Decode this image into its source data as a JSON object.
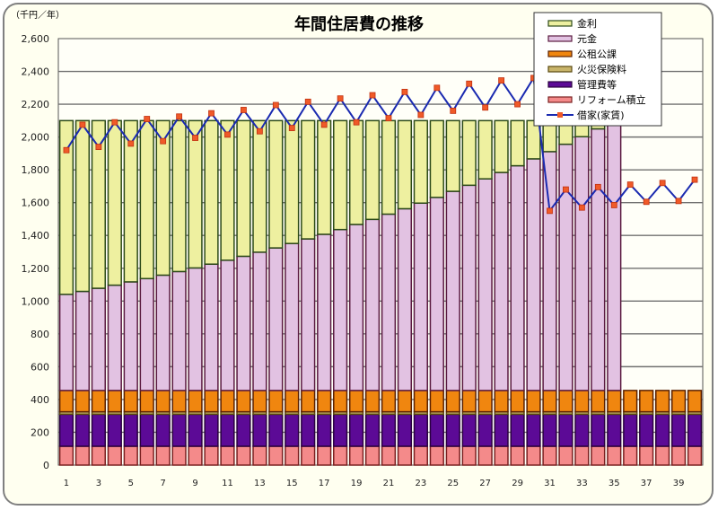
{
  "chart_data": {
    "type": "bar",
    "stacked": true,
    "title": "年間住居費の推移",
    "ylabel": "（千円／年）",
    "xlabel": "",
    "ylim": [
      0,
      2600
    ],
    "ytick_step": 200,
    "grid": true,
    "legend_position": "top-right",
    "categories": [
      1,
      2,
      3,
      4,
      5,
      6,
      7,
      8,
      9,
      10,
      11,
      12,
      13,
      14,
      15,
      16,
      17,
      18,
      19,
      20,
      21,
      22,
      23,
      24,
      25,
      26,
      27,
      28,
      29,
      30,
      31,
      32,
      33,
      34,
      35,
      36,
      37,
      38,
      39,
      40
    ],
    "series": [
      {
        "name": "リフォーム積立",
        "color": "#f48a8a",
        "border": "#7a2020",
        "values": [
          115,
          115,
          115,
          115,
          115,
          115,
          115,
          115,
          115,
          115,
          115,
          115,
          115,
          115,
          115,
          115,
          115,
          115,
          115,
          115,
          115,
          115,
          115,
          115,
          115,
          115,
          115,
          115,
          115,
          115,
          115,
          115,
          115,
          115,
          115,
          115,
          115,
          115,
          115,
          115
        ]
      },
      {
        "name": "管理費等",
        "color": "#5c0a96",
        "border": "#2a0040",
        "values": [
          195,
          195,
          195,
          195,
          195,
          195,
          195,
          195,
          195,
          195,
          195,
          195,
          195,
          195,
          195,
          195,
          195,
          195,
          195,
          195,
          195,
          195,
          195,
          195,
          195,
          195,
          195,
          195,
          195,
          195,
          195,
          195,
          195,
          195,
          195,
          195,
          195,
          195,
          195,
          195
        ]
      },
      {
        "name": "火災保険料",
        "color": "#c8b46a",
        "border": "#5a4a10",
        "values": [
          15,
          15,
          15,
          15,
          15,
          15,
          15,
          15,
          15,
          15,
          15,
          15,
          15,
          15,
          15,
          15,
          15,
          15,
          15,
          15,
          15,
          15,
          15,
          15,
          15,
          15,
          15,
          15,
          15,
          15,
          15,
          15,
          15,
          15,
          15,
          15,
          15,
          15,
          15,
          15
        ]
      },
      {
        "name": "公租公課",
        "color": "#f0860f",
        "border": "#5a2000",
        "values": [
          130,
          130,
          130,
          130,
          130,
          130,
          130,
          130,
          130,
          130,
          130,
          130,
          130,
          130,
          130,
          130,
          130,
          130,
          130,
          130,
          130,
          130,
          130,
          130,
          130,
          130,
          130,
          130,
          130,
          130,
          130,
          130,
          130,
          130,
          130,
          130,
          130,
          130,
          130,
          130
        ]
      },
      {
        "name": "元金",
        "color": "#e2c2e2",
        "border": "#5a1a40",
        "values": [
          586,
          604,
          623,
          642,
          662,
          682,
          703,
          725,
          747,
          770,
          794,
          818,
          843,
          869,
          896,
          924,
          952,
          981,
          1012,
          1043,
          1075,
          1108,
          1142,
          1177,
          1214,
          1251,
          1290,
          1329,
          1370,
          1412,
          1456,
          1501,
          1547,
          1595,
          1644,
          0,
          0,
          0,
          0,
          0
        ]
      },
      {
        "name": "金利",
        "color": "#eef0a0",
        "border": "#2c4a18",
        "values": [
          1059,
          1041,
          1022,
          1003,
          983,
          963,
          942,
          920,
          898,
          875,
          851,
          827,
          802,
          776,
          749,
          721,
          693,
          664,
          633,
          602,
          570,
          537,
          503,
          468,
          431,
          394,
          355,
          316,
          275,
          233,
          189,
          144,
          98,
          50,
          1,
          0,
          0,
          0,
          0,
          0
        ]
      }
    ],
    "line_series": {
      "name": "借家(家賃)",
      "color": "#1a2ab0",
      "marker_color": "#f05a28",
      "values": [
        1920,
        2075,
        1940,
        2090,
        1960,
        2110,
        1975,
        2125,
        1995,
        2145,
        2015,
        2165,
        2035,
        2195,
        2055,
        2215,
        2075,
        2235,
        2090,
        2255,
        2115,
        2275,
        2135,
        2300,
        2160,
        2325,
        2180,
        2345,
        2200,
        2360,
        1550,
        1680,
        1570,
        1695,
        1585,
        1710,
        1605,
        1720,
        1610,
        1740
      ]
    },
    "legend_order": [
      "金利",
      "元金",
      "公租公課",
      "火災保険料",
      "管理費等",
      "リフォーム積立",
      "借家(家賃)"
    ]
  }
}
